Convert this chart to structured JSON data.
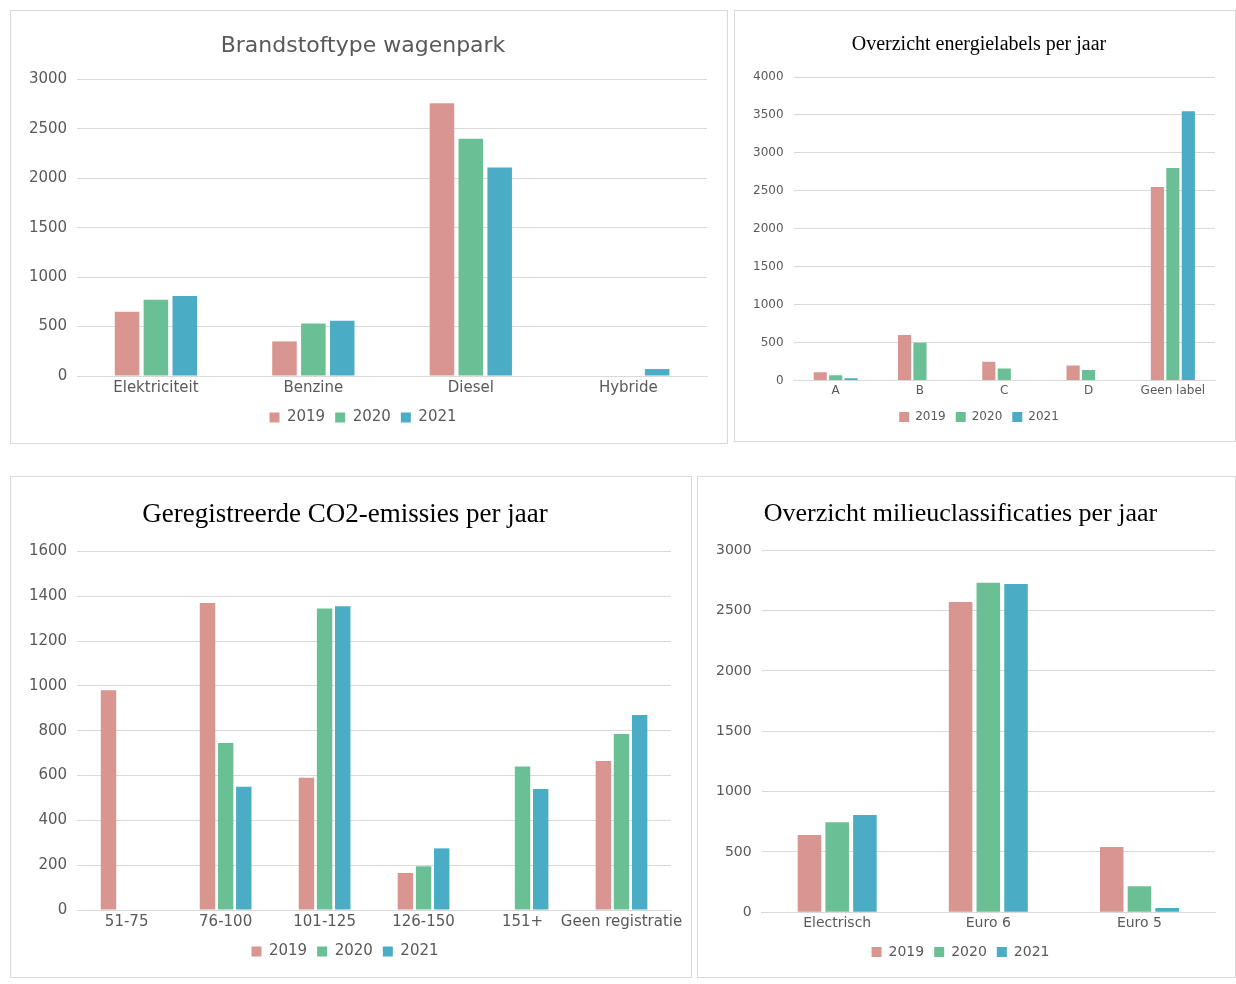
{
  "chart_data": [
    {
      "type": "bar",
      "title": "Brandstoftype wagenpark",
      "categories": [
        "Elektriciteit",
        "Benzine",
        "Diesel",
        "Hybride"
      ],
      "series": [
        {
          "name": "2019",
          "color": "#d9958f",
          "values": [
            650,
            350,
            2760,
            0
          ]
        },
        {
          "name": "2020",
          "color": "#6bbf94",
          "values": [
            770,
            530,
            2400,
            0
          ]
        },
        {
          "name": "2021",
          "color": "#4bacc6",
          "values": [
            810,
            560,
            2110,
            70
          ]
        }
      ],
      "ylim": [
        0,
        3000
      ],
      "yticks": [
        0,
        500,
        1000,
        1500,
        2000,
        2500,
        3000
      ],
      "grid": "y",
      "legend": "bottom"
    },
    {
      "type": "bar",
      "title": "Overzicht energielabels per jaar",
      "categories": [
        "A",
        "B",
        "C",
        "D",
        "Geen label"
      ],
      "series": [
        {
          "name": "2019",
          "color": "#d9958f",
          "values": [
            110,
            600,
            250,
            200,
            2550
          ]
        },
        {
          "name": "2020",
          "color": "#6bbf94",
          "values": [
            70,
            500,
            160,
            140,
            2800
          ]
        },
        {
          "name": "2021",
          "color": "#4bacc6",
          "values": [
            30,
            0,
            0,
            0,
            3550
          ]
        }
      ],
      "ylim": [
        0,
        4000
      ],
      "yticks": [
        0,
        500,
        1000,
        1500,
        2000,
        2500,
        3000,
        3500,
        4000
      ],
      "grid": "y",
      "legend": "bottom"
    },
    {
      "type": "bar",
      "title": "Geregistreerde CO2-emissies per jaar",
      "categories": [
        "51-75",
        "76-100",
        "101-125",
        "126-150",
        "151+",
        "Geen registratie"
      ],
      "series": [
        {
          "name": "2019",
          "color": "#d9958f",
          "values": [
            980,
            1370,
            590,
            165,
            0,
            665
          ]
        },
        {
          "name": "2020",
          "color": "#6bbf94",
          "values": [
            0,
            745,
            1345,
            195,
            640,
            785
          ]
        },
        {
          "name": "2021",
          "color": "#4bacc6",
          "values": [
            0,
            550,
            1355,
            275,
            540,
            870
          ]
        }
      ],
      "ylim": [
        0,
        1600
      ],
      "yticks": [
        0,
        200,
        400,
        600,
        800,
        1000,
        1200,
        1400,
        1600
      ],
      "grid": "y",
      "legend": "bottom"
    },
    {
      "type": "bar",
      "title": "Overzicht milieuclassificaties per jaar",
      "categories": [
        "Electrisch",
        "Euro 6",
        "Euro 5"
      ],
      "series": [
        {
          "name": "2019",
          "color": "#d9958f",
          "values": [
            640,
            2570,
            540
          ]
        },
        {
          "name": "2020",
          "color": "#6bbf94",
          "values": [
            745,
            2730,
            215
          ]
        },
        {
          "name": "2021",
          "color": "#4bacc6",
          "values": [
            805,
            2720,
            35
          ]
        }
      ],
      "ylim": [
        0,
        3000
      ],
      "yticks": [
        0,
        500,
        1000,
        1500,
        2000,
        2500,
        3000
      ],
      "grid": "y",
      "legend": "bottom"
    }
  ]
}
